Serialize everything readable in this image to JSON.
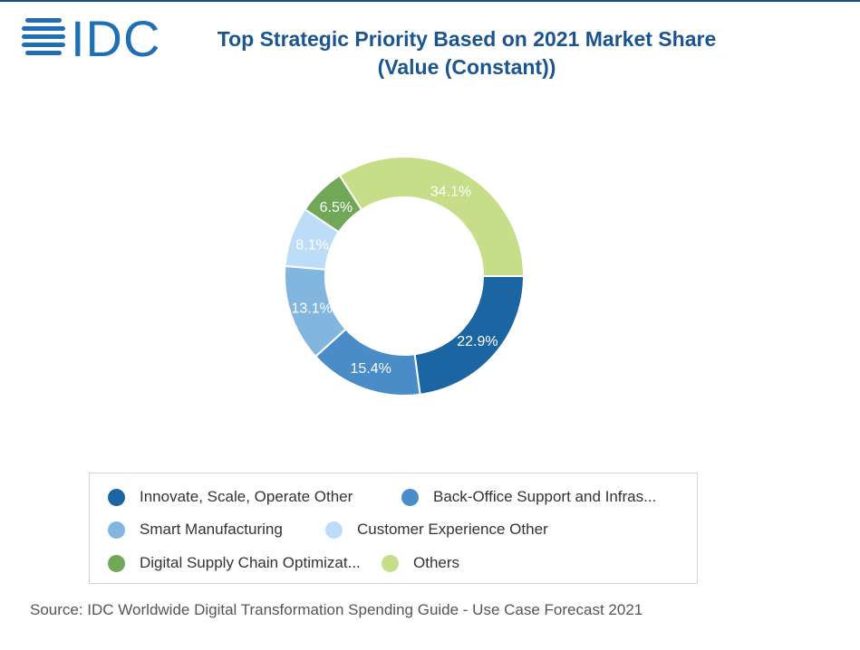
{
  "brand": {
    "logo_text": "IDC",
    "logo_color": "#1f6fb5"
  },
  "header": {
    "title_line1": "Top Strategic Priority Based on 2021 Market Share",
    "title_line2": "(Value (Constant))"
  },
  "chart_data": {
    "type": "pie",
    "variant": "donut",
    "title": "Top Strategic Priority Based on 2021 Market Share (Value (Constant))",
    "unit": "%",
    "categories": [
      "Innovate, Scale, Operate Other",
      "Back-Office Support and Infras...",
      "Smart Manufacturing",
      "Customer Experience Other",
      "Digital Supply Chain Optimizat...",
      "Others"
    ],
    "values": [
      22.9,
      15.4,
      13.1,
      8.1,
      6.5,
      34.1
    ],
    "labels": [
      "22.9%",
      "15.4%",
      "13.1%",
      "8.1%",
      "6.5%",
      "34.1%"
    ],
    "colors": [
      "#1c65a3",
      "#4a8cc7",
      "#83b6df",
      "#bcdcf7",
      "#70a857",
      "#c7de88"
    ],
    "legend_position": "bottom"
  },
  "legend": {
    "items": [
      {
        "label": "Innovate, Scale, Operate Other",
        "color": "#1c65a3"
      },
      {
        "label": "Back-Office Support and Infras...",
        "color": "#4a8cc7"
      },
      {
        "label": "Smart Manufacturing",
        "color": "#83b6df"
      },
      {
        "label": "Customer Experience Other",
        "color": "#bcdcf7"
      },
      {
        "label": "Digital Supply Chain Optimizat...",
        "color": "#70a857"
      },
      {
        "label": "Others",
        "color": "#c7de88"
      }
    ]
  },
  "footer": {
    "source": "Source: IDC Worldwide Digital Transformation Spending Guide - Use Case Forecast 2021"
  }
}
